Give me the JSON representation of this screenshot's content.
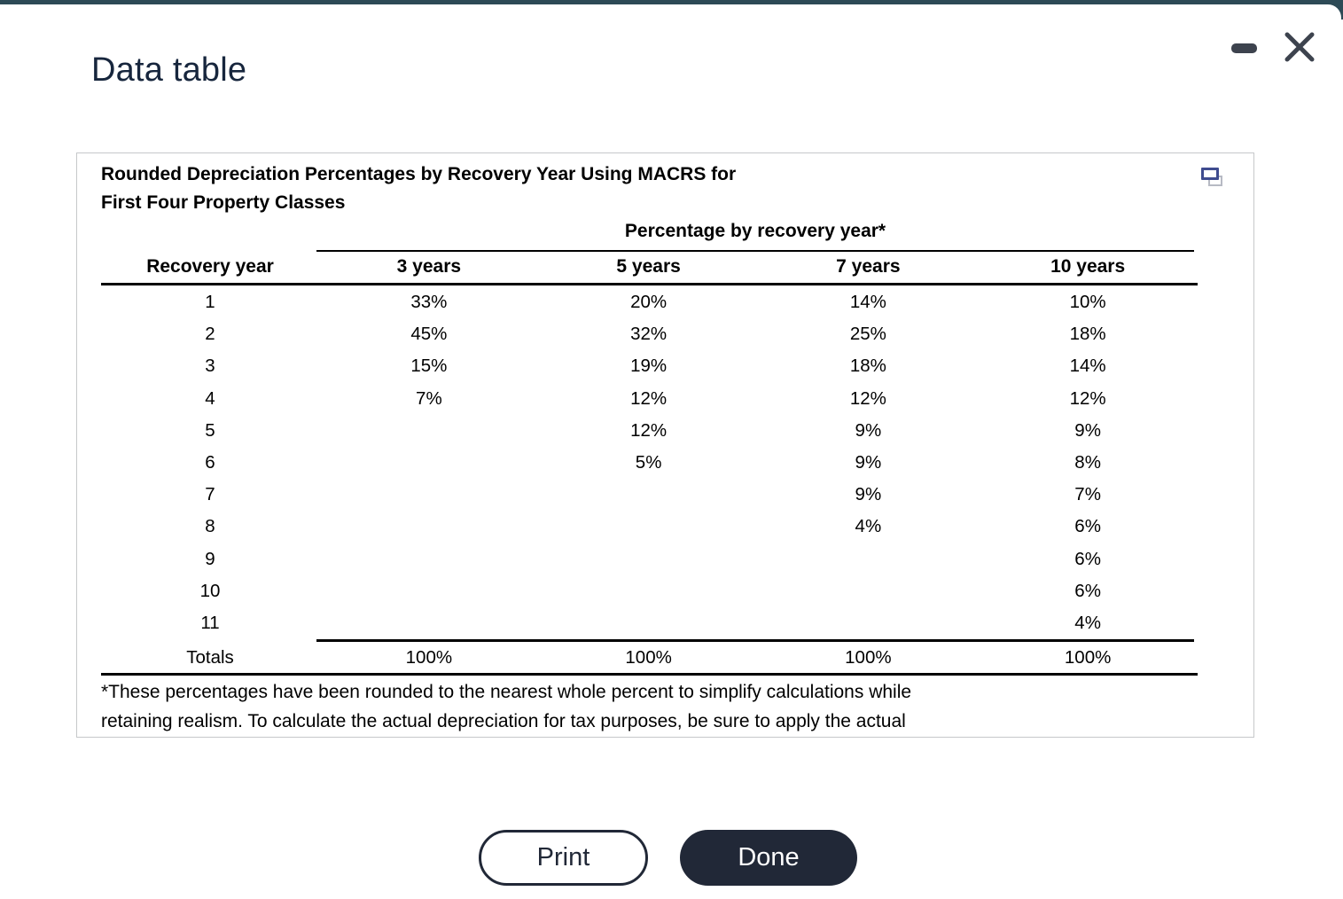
{
  "colors": {
    "top_bar": "#2d4a56",
    "title_text": "#17263d",
    "control_icon": "#3d434e",
    "button_dark": "#212837",
    "panel_border": "#c6c8ca",
    "popout_accent": "#3f4c8f",
    "popout_back": "#b7bac4"
  },
  "window": {
    "title": "Data table",
    "minimize_icon": "minimize-icon",
    "close_icon": "close-icon"
  },
  "table_card": {
    "title_line1": "Rounded Depreciation Percentages by Recovery Year Using MACRS for",
    "title_line2": "First Four Property Classes",
    "popout_icon": "popout-windows-icon",
    "span_header": "Percentage by recovery year*",
    "columns": [
      "Recovery year",
      "3 years",
      "5 years",
      "7 years",
      "10 years"
    ],
    "rows": [
      {
        "year": "1",
        "values": [
          "33%",
          "20%",
          "14%",
          "10%"
        ]
      },
      {
        "year": "2",
        "values": [
          "45%",
          "32%",
          "25%",
          "18%"
        ]
      },
      {
        "year": "3",
        "values": [
          "15%",
          "19%",
          "18%",
          "14%"
        ]
      },
      {
        "year": "4",
        "values": [
          "7%",
          "12%",
          "12%",
          "12%"
        ]
      },
      {
        "year": "5",
        "values": [
          "",
          "12%",
          "9%",
          "9%"
        ]
      },
      {
        "year": "6",
        "values": [
          "",
          "5%",
          "9%",
          "8%"
        ]
      },
      {
        "year": "7",
        "values": [
          "",
          "",
          "9%",
          "7%"
        ]
      },
      {
        "year": "8",
        "values": [
          "",
          "",
          "4%",
          "6%"
        ]
      },
      {
        "year": "9",
        "values": [
          "",
          "",
          "",
          "6%"
        ]
      },
      {
        "year": "10",
        "values": [
          "",
          "",
          "",
          "6%"
        ]
      },
      {
        "year": "11",
        "values": [
          "",
          "",
          "",
          "4%"
        ]
      }
    ],
    "totals": {
      "label": "Totals",
      "values": [
        "100%",
        "100%",
        "100%",
        "100%"
      ]
    },
    "footnote_line1": "*These percentages have been rounded to the nearest whole percent to simplify calculations while",
    "footnote_line2": "retaining realism. To calculate the actual depreciation for tax purposes, be sure to apply the actual"
  },
  "buttons": {
    "print": "Print",
    "done": "Done"
  }
}
